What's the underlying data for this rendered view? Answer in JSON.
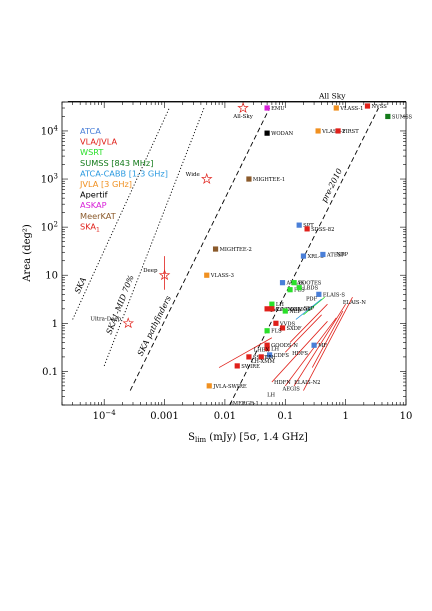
{
  "chart_data": {
    "type": "scatter",
    "xlabel_main": "S",
    "xlabel_sub": "lim",
    "xlabel_rest": " (mJy) [5σ, 1.4 GHz]",
    "ylabel": "Area (deg²)",
    "x_scale": "log",
    "y_scale": "log",
    "xlim": [
      2e-05,
      10
    ],
    "ylim": [
      0.02,
      40000
    ],
    "x_ticks": [
      {
        "v": 0.0001,
        "base": "10",
        "exp": "−4"
      },
      {
        "v": 0.001,
        "label": "0.001"
      },
      {
        "v": 0.01,
        "label": "0.01"
      },
      {
        "v": 0.1,
        "label": "0.1"
      },
      {
        "v": 1,
        "label": "1"
      },
      {
        "v": 10,
        "label": "10"
      }
    ],
    "y_ticks": [
      {
        "v": 0.1,
        "label": "0.1"
      },
      {
        "v": 1,
        "label": "1"
      },
      {
        "v": 10,
        "label": "10"
      },
      {
        "v": 100,
        "base": "10",
        "exp": "2"
      },
      {
        "v": 1000,
        "base": "10",
        "exp": "3"
      },
      {
        "v": 10000,
        "base": "10",
        "exp": "4"
      }
    ],
    "all_sky": {
      "label": "All Sky",
      "y": 41253,
      "x_from": 2.5e-05,
      "x_to": 10
    },
    "legend": [
      {
        "label": "ATCA",
        "color": "#4a7fd8"
      },
      {
        "label": "VLA/JVLA",
        "color": "#e0201a"
      },
      {
        "label": "WSRT",
        "color": "#2ae02a"
      },
      {
        "label": "SUMSS [843 MHz]",
        "color": "#137a1a"
      },
      {
        "label": "ATCA-CABB [1-3 GHz]",
        "color": "#2b9ae0"
      },
      {
        "label": "JVLA [3 GHz]",
        "color": "#f09020"
      },
      {
        "label": "Apertif",
        "color": "#000000"
      },
      {
        "label": "ASKAP",
        "color": "#d820d8"
      },
      {
        "label": "MeerKAT",
        "color": "#8b5a2b"
      },
      {
        "label": "SKA",
        "sub": "1",
        "color": "#e0201a"
      }
    ],
    "diagonal_lines": [
      {
        "label": "SKA",
        "style": "dotted",
        "x1": 3e-05,
        "y1": 1.2,
        "x2": 0.0012,
        "y2": 30000
      },
      {
        "label": "SKA1-MID 70%",
        "style": "dotted",
        "x1": 0.0001,
        "y1": 0.13,
        "x2": 0.0045,
        "y2": 30000
      },
      {
        "label": "SKA pathfinders",
        "style": "dashed",
        "x1": 0.00027,
        "y1": 0.04,
        "x2": 0.055,
        "y2": 30000
      },
      {
        "label": "pre-2010",
        "style": "dashed",
        "x1": 0.012,
        "y1": 0.02,
        "x2": 3.5,
        "y2": 30000
      }
    ],
    "ska_points": [
      {
        "label": "All-Sky",
        "x": 0.02,
        "y": 30000
      },
      {
        "label": "Wide",
        "x": 0.005,
        "y": 1000
      },
      {
        "label": "Deep",
        "x": 0.001,
        "y": 10
      },
      {
        "label": "Ultra-Deep",
        "x": 0.00025,
        "y": 1
      }
    ],
    "points": [
      {
        "label": "EMU",
        "x": 0.05,
        "y": 30000,
        "color": "#d820d8"
      },
      {
        "label": "WODAN",
        "x": 0.05,
        "y": 9000,
        "color": "#000000"
      },
      {
        "label": "VLASS-1",
        "x": 0.7,
        "y": 30000,
        "color": "#f09020"
      },
      {
        "label": "NVSS",
        "x": 2.3,
        "y": 33000,
        "color": "#e0201a"
      },
      {
        "label": "SUMSS",
        "x": 5,
        "y": 20000,
        "color": "#137a1a"
      },
      {
        "label": "VLASS-2",
        "x": 0.35,
        "y": 10000,
        "color": "#f09020"
      },
      {
        "label": "FIRST",
        "x": 0.75,
        "y": 10000,
        "color": "#e0201a"
      },
      {
        "label": "MIGHTEE-1",
        "x": 0.025,
        "y": 1000,
        "color": "#8b5a2b"
      },
      {
        "label": "SPT",
        "x": 0.17,
        "y": 110,
        "color": "#4a7fd8"
      },
      {
        "label": "SDSS-82",
        "x": 0.23,
        "y": 92,
        "color": "#e0201a"
      },
      {
        "label": "MIGHTEE-2",
        "x": 0.007,
        "y": 35,
        "color": "#8b5a2b"
      },
      {
        "label": "XRL-S",
        "x": 0.2,
        "y": 25,
        "color": "#4a7fd8"
      },
      {
        "label": "ATESP",
        "x": 0.42,
        "y": 27,
        "color": "#4a7fd8"
      },
      {
        "label": "VLASS-3",
        "x": 0.005,
        "y": 10,
        "color": "#f09020"
      },
      {
        "label": "ATLAS",
        "x": 0.09,
        "y": 7,
        "color": "#4a7fd8"
      },
      {
        "label": "BOOTES",
        "x": 0.14,
        "y": 7,
        "color": "#2ae02a"
      },
      {
        "label": "FLS",
        "x": 0.12,
        "y": 5,
        "color": "#2ae02a"
      },
      {
        "label": "LBDS",
        "x": 0.17,
        "y": 5.5,
        "color": "#2ae02a"
      },
      {
        "label": "ELAIS-S",
        "x": 0.36,
        "y": 4,
        "color": "#4a7fd8"
      },
      {
        "label": "LH",
        "x": 0.06,
        "y": 2.5,
        "color": "#2ae02a"
      },
      {
        "label": "JVLA-COSMOS",
        "x": 0.05,
        "y": 2,
        "color": "#e0201a"
      },
      {
        "label": "COSMOS",
        "x": 0.06,
        "y": 2,
        "color": "#e0201a"
      },
      {
        "label": "NEP",
        "x": 0.1,
        "y": 1.8,
        "color": "#2ae02a"
      },
      {
        "label": "VVDS",
        "x": 0.07,
        "y": 1,
        "color": "#e0201a"
      },
      {
        "label": "SXDF",
        "x": 0.09,
        "y": 0.8,
        "color": "#e0201a"
      },
      {
        "label": "FLS",
        "x": 0.05,
        "y": 0.7,
        "color": "#2ae02a"
      },
      {
        "label": "MF",
        "x": 0.3,
        "y": 0.35,
        "color": "#4a7fd8"
      },
      {
        "label": "GOODS-N",
        "x": 0.05,
        "y": 0.35,
        "color": "#e0201a"
      },
      {
        "label": "LH",
        "x": 0.05,
        "y": 0.3,
        "color": "#e0201a"
      },
      {
        "label": "CDFS",
        "x": 0.055,
        "y": 0.22,
        "color": "#4a7fd8"
      },
      {
        "label": "SSA13",
        "x": 0.025,
        "y": 0.2,
        "color": "#e0201a"
      },
      {
        "label": "13h",
        "x": 0.04,
        "y": 0.2,
        "color": "#e0201a"
      },
      {
        "label": "SWIRE",
        "x": 0.016,
        "y": 0.13,
        "color": "#e0201a"
      },
      {
        "label": "JVLA-SWIRE",
        "x": 0.0055,
        "y": 0.05,
        "color": "#f09020"
      }
    ],
    "text_labels": [
      {
        "label": "SEP",
        "x": 0.2,
        "y": 1.9
      },
      {
        "label": "PDF",
        "x": 0.22,
        "y": 3
      },
      {
        "label": "NEP",
        "x": 0.7,
        "y": 25
      },
      {
        "label": "ELAIS-N",
        "x": 0.9,
        "y": 2.5
      },
      {
        "label": "LH-XMM",
        "x": 0.027,
        "y": 0.15
      },
      {
        "label": "HDFS",
        "x": 0.13,
        "y": 0.22
      },
      {
        "label": "LHEX",
        "x": 0.03,
        "y": 0.26
      },
      {
        "label": "HDFN",
        "x": 0.065,
        "y": 0.055
      },
      {
        "label": "ELAIS-N2",
        "x": 0.14,
        "y": 0.055
      },
      {
        "label": "AEGIS",
        "x": 0.09,
        "y": 0.04
      },
      {
        "label": "LH",
        "x": 0.05,
        "y": 0.03
      },
      {
        "label": "eMERGE-1",
        "x": 0.012,
        "y": 0.02
      }
    ]
  }
}
